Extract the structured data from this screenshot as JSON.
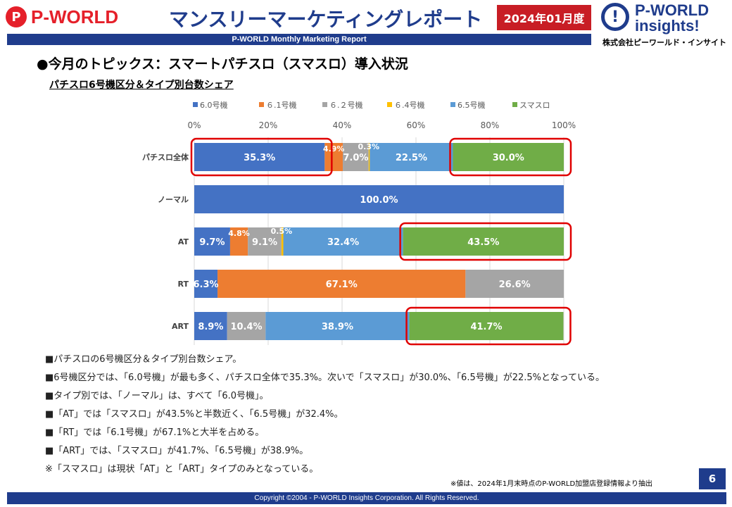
{
  "header": {
    "logo_left_mark": "P",
    "logo_left_text": "P-WORLD",
    "title": "マンスリーマーケティングレポート",
    "date_badge": "2024年01月度",
    "subtitle": "P-WORLD Monthly Marketing Report",
    "logo_right_line1": "P-WORLD",
    "logo_right_line2": "insights!",
    "logo_right_company": "株式会社ピーワールド・インサイト"
  },
  "section_title": "●今月のトピックス：スマートパチスロ（スマスロ）導入状況",
  "chart_title": "パチスロ6号機区分＆タイプ別台数シェア",
  "chart_data": {
    "type": "bar",
    "orientation": "horizontal",
    "stacked": "percent",
    "title": "パチスロ6号機区分＆タイプ別台数シェア",
    "categories": [
      "パチスロ全体",
      "ノーマル",
      "AT",
      "RT",
      "ART"
    ],
    "x_ticks": [
      "0%",
      "20%",
      "40%",
      "60%",
      "80%",
      "100%"
    ],
    "xlim": [
      0,
      100
    ],
    "legend_position": "top",
    "series": [
      {
        "name": "6.0号機",
        "color": "#4472c4",
        "values": [
          35.3,
          100.0,
          9.7,
          6.3,
          8.9
        ]
      },
      {
        "name": "６.1号機",
        "color": "#ed7d31",
        "values": [
          4.9,
          0,
          4.8,
          67.1,
          0
        ]
      },
      {
        "name": "６.２号機",
        "color": "#a5a5a5",
        "values": [
          7.0,
          0,
          9.1,
          26.6,
          10.4
        ]
      },
      {
        "name": "６.4号機",
        "color": "#ffc000",
        "values": [
          0.3,
          0,
          0.5,
          0,
          0
        ]
      },
      {
        "name": "6.5号機",
        "color": "#5b9bd5",
        "values": [
          22.5,
          0,
          32.4,
          0,
          38.9
        ]
      },
      {
        "name": "スマスロ",
        "color": "#70ad47",
        "values": [
          30.0,
          0,
          43.5,
          0,
          41.7
        ]
      }
    ],
    "data_labels": [
      [
        "35.3%",
        "",
        "9.7%",
        "6.3%",
        "8.9%"
      ],
      [
        "4.9%",
        "",
        "4.8%",
        "67.1%",
        ""
      ],
      [
        "7.0%",
        "",
        "9.1%",
        "26.6%",
        "10.4%"
      ],
      [
        "0.3%",
        "",
        "0.5%",
        "",
        ""
      ],
      [
        "22.5%",
        "",
        "32.4%",
        "",
        "38.9%"
      ],
      [
        "30.0%",
        "",
        "43.5%",
        "",
        "41.7%"
      ]
    ],
    "single_labels": {
      "ノーマル": "100.0%"
    },
    "highlight_color": "#e00000",
    "highlights": [
      {
        "category": "パチスロ全体",
        "series": "6.0号機"
      },
      {
        "category": "パチスロ全体",
        "series": "スマスロ"
      },
      {
        "category": "AT",
        "series": "スマスロ"
      },
      {
        "category": "ART",
        "series": "スマスロ"
      }
    ]
  },
  "notes": [
    "■パチスロの6号機区分＆タイプ別台数シェア。",
    "■6号機区分では、「6.0号機」が最も多く、パチスロ全体で35.3%。次いで「スマスロ」が30.0%、「6.5号機」が22.5%となっている。",
    "■タイプ別では、「ノーマル」は、すべて「6.0号機」。",
    "■「AT」では「スマスロ」が43.5%と半数近く、「6.5号機」が32.4%。",
    "■「RT」では「6.1号機」が67.1%と大半を占める。",
    "■「ART」では、「スマスロ」が41.7%、「6.5号機」が38.9%。",
    "※「スマスロ」は現状「AT」と「ART」タイプのみとなっている。"
  ],
  "footnote": "※値は、2024年1月末時点のP-WORLD加盟店登録情報より抽出",
  "page_number": "6",
  "copyright": "Copyright ©2004 -  P-WORLD Insights Corporation. All Rights Reserved."
}
